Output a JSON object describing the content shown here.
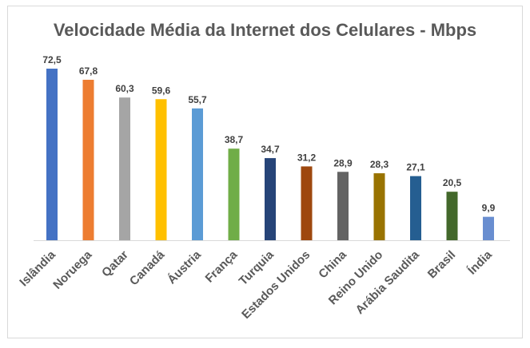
{
  "chart_data": {
    "type": "bar",
    "title": "Velocidade Média da Internet dos Celulares - Mbps",
    "xlabel": "",
    "ylabel": "",
    "ylim": [
      0,
      80
    ],
    "grid": false,
    "legend": "none",
    "categories": [
      "Islândia",
      "Noruega",
      "Qatar",
      "Canadá",
      "Áustria",
      "França",
      "Turquia",
      "Estados Unidos",
      "China",
      "Reino Unido",
      "Arábia Saudita",
      "Brasil",
      "Índia"
    ],
    "values": [
      72.5,
      67.8,
      60.3,
      59.6,
      55.7,
      38.7,
      34.7,
      31.2,
      28.9,
      28.3,
      27.1,
      20.5,
      9.9
    ],
    "data_labels": [
      "72,5",
      "67,8",
      "60,3",
      "59,6",
      "55,7",
      "38,7",
      "34,7",
      "31,2",
      "28,9",
      "28,3",
      "27,1",
      "20,5",
      "9,9"
    ],
    "colors": [
      "#4472C4",
      "#ED7D31",
      "#A5A5A5",
      "#FFC000",
      "#5B9BD5",
      "#70AD47",
      "#264478",
      "#9E480E",
      "#636363",
      "#997300",
      "#255E91",
      "#43682B",
      "#698ED0"
    ]
  }
}
